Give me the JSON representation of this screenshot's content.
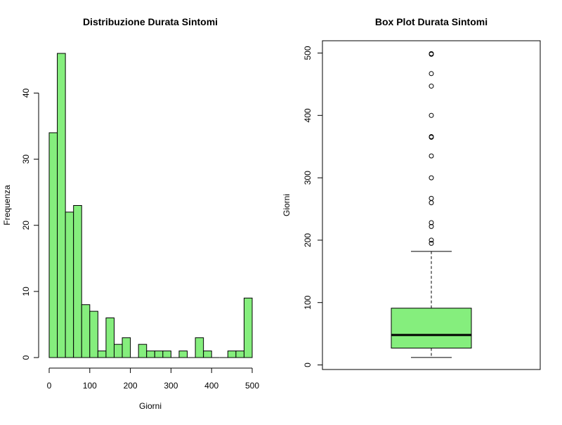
{
  "chart_data": [
    {
      "type": "bar",
      "subtype": "histogram",
      "title": "Distribuzione Durata Sintomi",
      "xlabel": "Giorni",
      "ylabel": "Frequenza",
      "xlim": [
        0,
        500
      ],
      "ylim": [
        0,
        46
      ],
      "bin_width": 20,
      "bins": [
        {
          "start": 0,
          "end": 20,
          "count": 34
        },
        {
          "start": 20,
          "end": 40,
          "count": 46
        },
        {
          "start": 40,
          "end": 60,
          "count": 22
        },
        {
          "start": 60,
          "end": 80,
          "count": 23
        },
        {
          "start": 80,
          "end": 100,
          "count": 8
        },
        {
          "start": 100,
          "end": 120,
          "count": 7
        },
        {
          "start": 120,
          "end": 140,
          "count": 1
        },
        {
          "start": 140,
          "end": 160,
          "count": 6
        },
        {
          "start": 160,
          "end": 180,
          "count": 2
        },
        {
          "start": 180,
          "end": 200,
          "count": 3
        },
        {
          "start": 200,
          "end": 220,
          "count": 0
        },
        {
          "start": 220,
          "end": 240,
          "count": 2
        },
        {
          "start": 240,
          "end": 260,
          "count": 1
        },
        {
          "start": 260,
          "end": 280,
          "count": 1
        },
        {
          "start": 280,
          "end": 300,
          "count": 1
        },
        {
          "start": 300,
          "end": 320,
          "count": 0
        },
        {
          "start": 320,
          "end": 340,
          "count": 1
        },
        {
          "start": 340,
          "end": 360,
          "count": 0
        },
        {
          "start": 360,
          "end": 380,
          "count": 3
        },
        {
          "start": 380,
          "end": 400,
          "count": 1
        },
        {
          "start": 400,
          "end": 420,
          "count": 0
        },
        {
          "start": 420,
          "end": 440,
          "count": 0
        },
        {
          "start": 440,
          "end": 460,
          "count": 1
        },
        {
          "start": 460,
          "end": 480,
          "count": 1
        },
        {
          "start": 480,
          "end": 500,
          "count": 9
        }
      ],
      "x_ticks": [
        "0",
        "100",
        "200",
        "300",
        "400",
        "500"
      ],
      "y_ticks": [
        "0",
        "10",
        "20",
        "30",
        "40"
      ],
      "bar_color": "#85ee7d",
      "edge_color": "#000000"
    },
    {
      "type": "box",
      "title": "Box Plot Durata Sintomi",
      "xlabel": "",
      "ylabel": "Giorni",
      "ylim": [
        0,
        500
      ],
      "y_ticks": [
        "0",
        "100",
        "200",
        "300",
        "400",
        "500"
      ],
      "box": {
        "whisker_low": 12,
        "q1": 27,
        "median": 48,
        "q3": 91,
        "whisker_high": 182
      },
      "outliers": [
        195,
        200,
        222,
        228,
        260,
        267,
        300,
        335,
        365,
        366,
        400,
        447,
        467,
        498,
        499
      ],
      "box_color": "#85ee7d",
      "edge_color": "#000000"
    }
  ]
}
